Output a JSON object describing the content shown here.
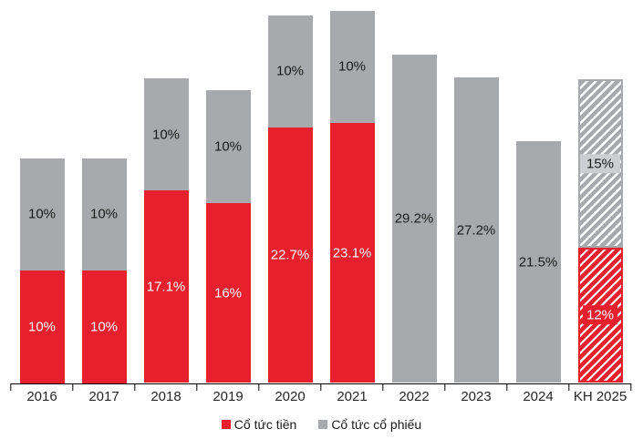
{
  "colors": {
    "cash_red": "#e8202e",
    "stock_gray": "#a7a9ac",
    "hatch_label_bg": "#cdced1",
    "axis_color": "#000000",
    "label_on_red": "#ffffff",
    "label_on_gray": "#1a1a1a"
  },
  "legend": {
    "items": [
      {
        "label": "Cổ tức tiền",
        "color": "#e8202e"
      },
      {
        "label": "Cổ tức cổ phiếu",
        "color": "#a7a9ac"
      }
    ]
  },
  "chart_data": {
    "type": "bar",
    "stacked": true,
    "title": "",
    "xlabel": "",
    "ylabel": "",
    "grid": false,
    "legend_position": "bottom",
    "ylim": [
      0,
      34
    ],
    "categories": [
      "2016",
      "2017",
      "2018",
      "2019",
      "2020",
      "2021",
      "2022",
      "2023",
      "2024",
      "KH 2025"
    ],
    "series": [
      {
        "name": "Cổ tức tiền",
        "color": "#e8202e",
        "values": [
          10,
          10,
          17.1,
          16,
          22.7,
          23.1,
          0,
          0,
          0,
          12
        ],
        "labels": [
          "10%",
          "10%",
          "17.1%",
          "16%",
          "22.7%",
          "23.1%",
          "",
          "",
          "",
          "12%"
        ]
      },
      {
        "name": "Cổ tức cổ phiếu",
        "color": "#a7a9ac",
        "values": [
          10,
          10,
          10,
          10,
          10,
          10,
          29.2,
          27.2,
          21.5,
          15
        ],
        "labels": [
          "10%",
          "10%",
          "10%",
          "10%",
          "10%",
          "10%",
          "29.2%",
          "27.2%",
          "21.5%",
          "15%"
        ]
      }
    ],
    "plan_category": "KH 2025",
    "plan_style": "hatched"
  }
}
